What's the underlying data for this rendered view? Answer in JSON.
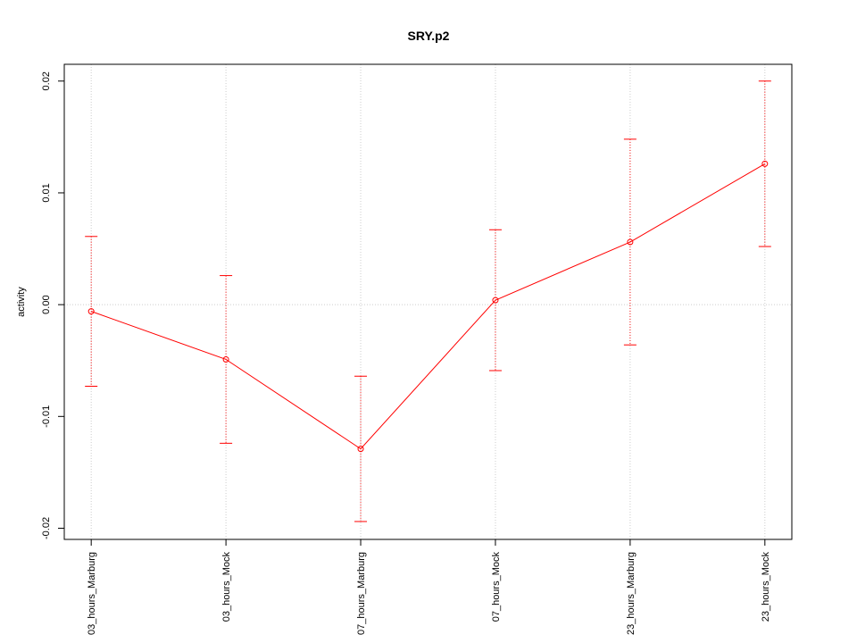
{
  "chart_data": {
    "type": "line",
    "title": "SRY.p2",
    "y_label": "activity",
    "categories": [
      "03_hours_Marburg",
      "03_hours_Mock",
      "07_hours_Marburg",
      "07_hours_Mock",
      "23_hours_Marburg",
      "23_hours_Mock"
    ],
    "series": [
      {
        "name": "SRY.p2",
        "color": "#ff0000",
        "values": [
          -0.0006,
          -0.0049,
          -0.0129,
          0.0004,
          0.0056,
          0.0126
        ],
        "errors": [
          0.0067,
          0.0075,
          0.0065,
          0.0063,
          0.0092,
          0.0074
        ]
      }
    ],
    "ylim": [
      -0.021,
      0.0215
    ],
    "yticks": [
      -0.02,
      -0.01,
      {
        "value": 0,
        "label": "0.00"
      },
      0.01,
      0.02
    ],
    "hline": 0,
    "grid": true
  }
}
